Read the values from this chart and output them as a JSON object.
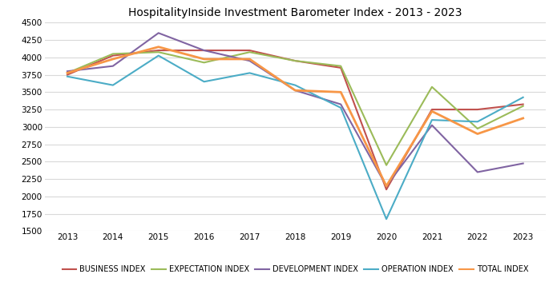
{
  "title": "HospitalityInside Investment Barometer Index - 2013 - 2023",
  "years": [
    2013,
    2014,
    2015,
    2016,
    2017,
    2018,
    2019,
    2020,
    2021,
    2022,
    2023
  ],
  "series": {
    "BUSINESS INDEX": {
      "values": [
        3750,
        4025,
        4100,
        4100,
        4100,
        3950,
        3850,
        2100,
        3250,
        3250,
        3325
      ],
      "color": "#C0504D",
      "linewidth": 1.5
    },
    "EXPECTATION INDEX": {
      "values": [
        3775,
        4050,
        4075,
        3925,
        4075,
        3950,
        3875,
        2450,
        3575,
        2975,
        3300
      ],
      "color": "#9BBB59",
      "linewidth": 1.5
    },
    "DEVELOPMENT INDEX": {
      "values": [
        3800,
        3875,
        4350,
        4100,
        3950,
        3525,
        3325,
        2150,
        3025,
        2350,
        2475
      ],
      "color": "#8064A2",
      "linewidth": 1.5
    },
    "OPERATION INDEX": {
      "values": [
        3725,
        3600,
        4025,
        3650,
        3775,
        3600,
        3275,
        1675,
        3100,
        3075,
        3425
      ],
      "color": "#4BACC6",
      "linewidth": 1.5
    },
    "TOTAL INDEX": {
      "values": [
        3775,
        3975,
        4150,
        3975,
        3975,
        3525,
        3500,
        2150,
        3225,
        2900,
        3125
      ],
      "color": "#F79646",
      "linewidth": 2.0
    }
  },
  "ylim": [
    1500,
    4500
  ],
  "yticks": [
    1500,
    1750,
    2000,
    2250,
    2500,
    2750,
    3000,
    3250,
    3500,
    3750,
    4000,
    4250,
    4500
  ],
  "background_color": "#FFFFFF",
  "plot_bg_color": "#FFFFFF",
  "grid_color": "#D9D9D9",
  "title_fontsize": 10,
  "legend_fontsize": 7,
  "tick_fontsize": 7.5
}
